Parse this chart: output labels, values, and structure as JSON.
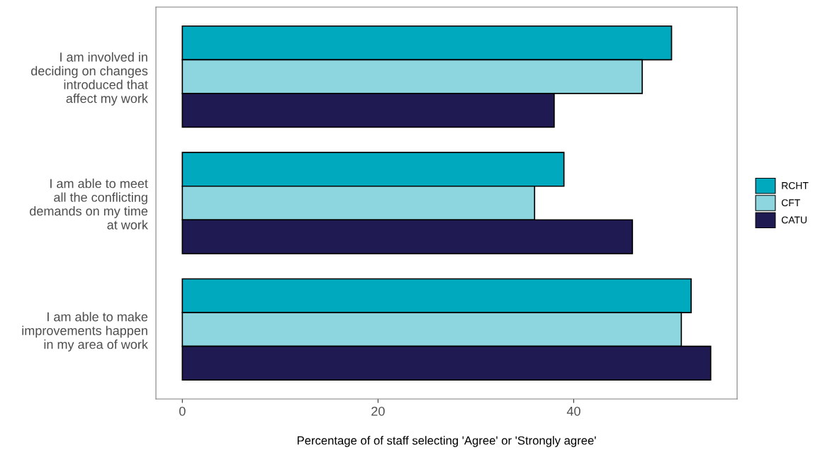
{
  "chart_data": {
    "type": "bar",
    "orientation": "horizontal",
    "categories": [
      "I am involved in\ndeciding on changes\nintroduced that\naffect my work",
      "I am able to meet\nall the conflicting\ndemands on my time\nat work",
      "I am able to make\nimprovements happen\nin my area of work"
    ],
    "series": [
      {
        "name": "RCHT",
        "color": "#00a9bd",
        "values": [
          50,
          39,
          52
        ]
      },
      {
        "name": "CFT",
        "color": "#8ed6df",
        "values": [
          47,
          36,
          51
        ]
      },
      {
        "name": "CATU",
        "color": "#201a52",
        "values": [
          38,
          46,
          54
        ]
      }
    ],
    "xlabel": "Percentage of of staff selecting 'Agree' or 'Strongly agree'",
    "xlim": [
      -2.7,
      56.7
    ],
    "xticks": [
      0,
      20,
      40
    ],
    "grid": false,
    "legend": "right"
  }
}
